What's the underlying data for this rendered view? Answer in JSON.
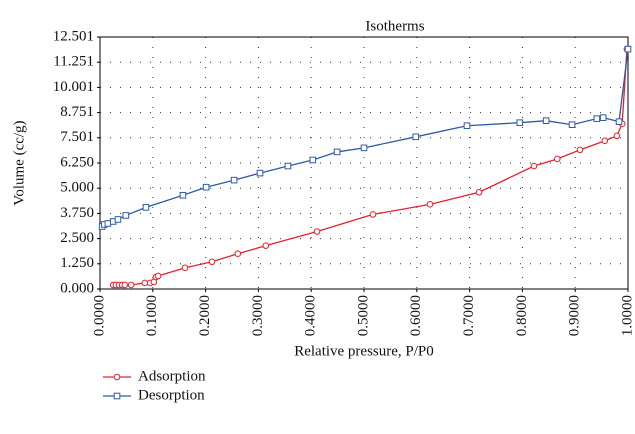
{
  "chart_data": {
    "type": "line",
    "title": "Isotherms",
    "x_label": "Relative pressure, P/P0",
    "y_label": "Volume (cc/g)",
    "xlim": [
      0,
      1
    ],
    "ylim": [
      0,
      12.501
    ],
    "xticks": [
      {
        "value": 0,
        "label": "0.0000"
      },
      {
        "value": 0.1,
        "label": "0.1000"
      },
      {
        "value": 0.2,
        "label": "0.2000"
      },
      {
        "value": 0.3,
        "label": "0.3000"
      },
      {
        "value": 0.4,
        "label": "0.4000"
      },
      {
        "value": 0.5,
        "label": "0.5000"
      },
      {
        "value": 0.6,
        "label": "0.6000"
      },
      {
        "value": 0.7,
        "label": "0.7000"
      },
      {
        "value": 0.8,
        "label": "0.8000"
      },
      {
        "value": 0.9,
        "label": "0.9000"
      },
      {
        "value": 1,
        "label": "1.0000"
      }
    ],
    "yticks": [
      {
        "value": 0,
        "label": "0.000"
      },
      {
        "value": 1.25,
        "label": "1.250"
      },
      {
        "value": 2.5,
        "label": "2.500"
      },
      {
        "value": 3.75,
        "label": "3.750"
      },
      {
        "value": 5,
        "label": "5.000"
      },
      {
        "value": 6.25,
        "label": "6.250"
      },
      7.501,
      8.751,
      10.001,
      11.251,
      12.501
    ],
    "grid": true,
    "series": [
      {
        "name": "Adsorption",
        "color": "#e8202a",
        "marker": "circle",
        "x": [
          0.025,
          0.03,
          0.036,
          0.042,
          0.047,
          0.059,
          0.085,
          0.095,
          0.102,
          0.106,
          0.11,
          0.161,
          0.212,
          0.261,
          0.314,
          0.411,
          0.517,
          0.625,
          0.718,
          0.822,
          0.866,
          0.909,
          0.956,
          0.979,
          0.989,
          0.998
        ],
        "values": [
          0.2,
          0.2,
          0.2,
          0.2,
          0.2,
          0.2,
          0.3,
          0.3,
          0.35,
          0.6,
          0.65,
          1.05,
          1.35,
          1.75,
          2.15,
          2.85,
          3.7,
          4.2,
          4.8,
          6.1,
          6.45,
          6.9,
          7.35,
          7.6,
          8.2,
          11.9
        ]
      },
      {
        "name": "Desorption",
        "color": "#2e5aa6",
        "marker": "square",
        "x": [
          0.004,
          0.008,
          0.015,
          0.025,
          0.034,
          0.049,
          0.087,
          0.157,
          0.201,
          0.254,
          0.303,
          0.356,
          0.403,
          0.449,
          0.5,
          0.598,
          0.695,
          0.795,
          0.845,
          0.894,
          0.941,
          0.953,
          0.983,
          1.0
        ],
        "values": [
          3.1,
          3.2,
          3.25,
          3.35,
          3.45,
          3.65,
          4.05,
          4.65,
          5.05,
          5.4,
          5.75,
          6.1,
          6.4,
          6.8,
          7.0,
          7.55,
          8.1,
          8.25,
          8.35,
          8.15,
          8.45,
          8.5,
          8.3,
          11.9
        ]
      }
    ]
  }
}
